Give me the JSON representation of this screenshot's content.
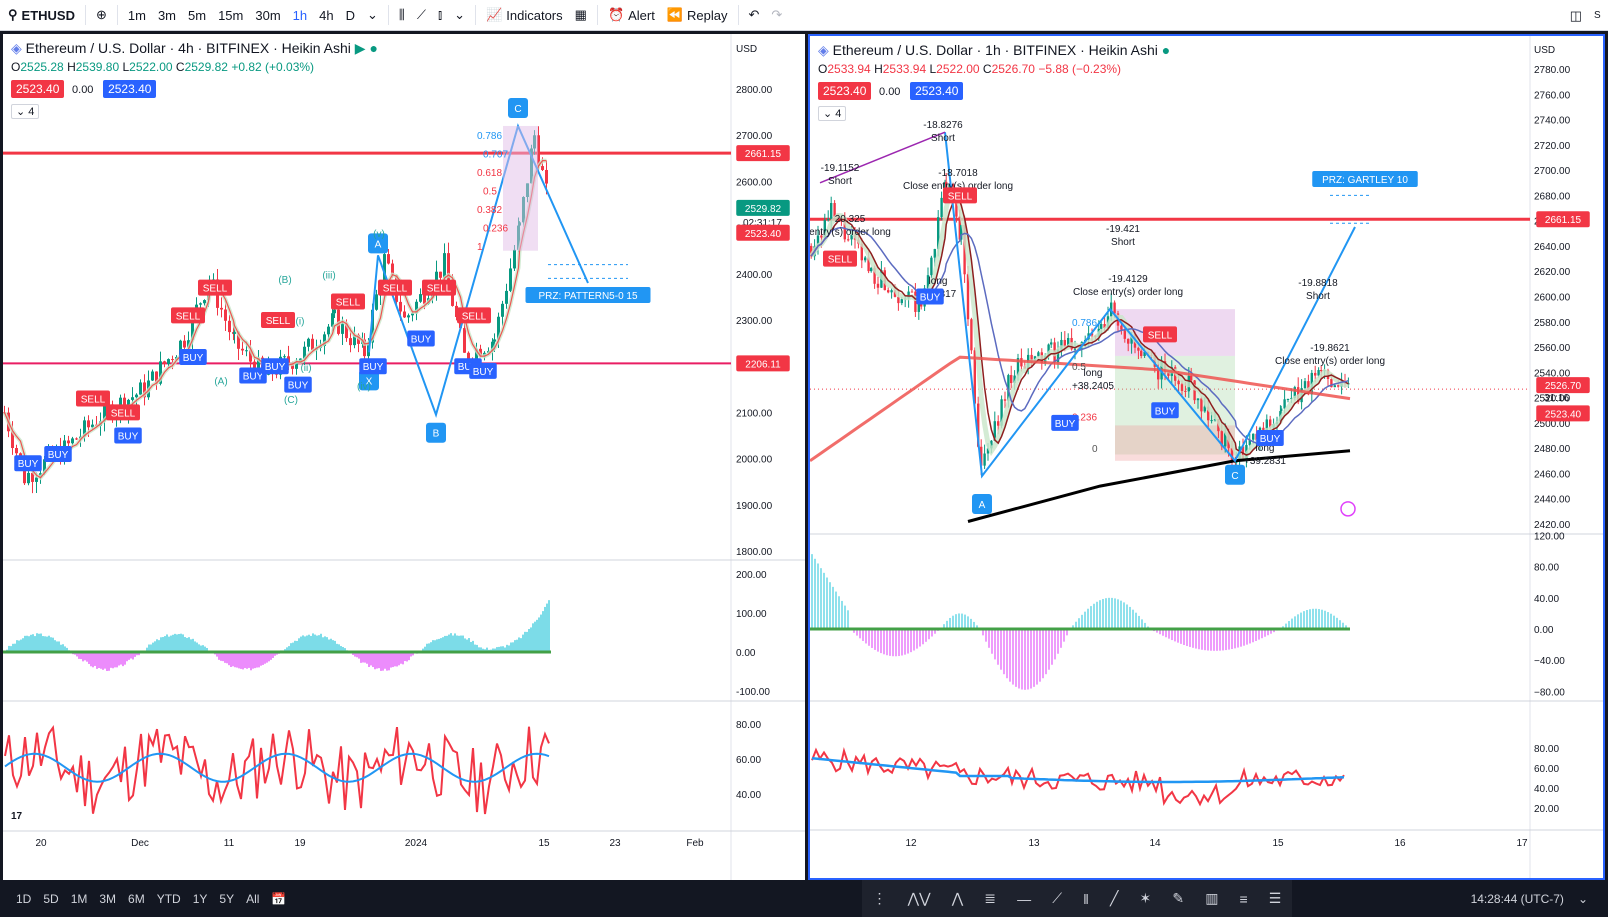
{
  "toolbar": {
    "symbol": "ETHUSD",
    "intervals": [
      "1m",
      "3m",
      "5m",
      "15m",
      "30m",
      "1h",
      "4h",
      "D"
    ],
    "active_interval": "1h",
    "indicators_label": "Indicators",
    "alert_label": "Alert",
    "replay_label": "Replay"
  },
  "left_chart": {
    "title": "Ethereum / U.S. Dollar · 4h · BITFINEX · Heikin Ashi",
    "ohlc": {
      "o": "2525.28",
      "h": "2539.80",
      "l": "2522.00",
      "c": "2529.82",
      "chg": "+0.82 (+0.03%)"
    },
    "bid": "2523.40",
    "spread": "0.00",
    "ask": "2523.40",
    "indicator_count": "4",
    "currency": "USD",
    "price_axis": [
      "2800.00",
      "2700.00",
      "2600.00",
      "2500.00",
      "2400.00",
      "2300.00",
      "2200.00",
      "2100.00",
      "2000.00",
      "1900.00",
      "1800.00"
    ],
    "level_upper": "2661.15",
    "level_lower": "2206.11",
    "last_price": "2529.82",
    "countdown": "02:31:17",
    "last_bid": "2523.40",
    "osc1_axis": [
      "200.00",
      "100.00",
      "0.00",
      "-100.00"
    ],
    "osc2_axis": [
      "80.00",
      "60.00",
      "40.00"
    ],
    "time_axis": [
      "20",
      "Dec",
      "11",
      "19",
      "2024",
      "15",
      "23",
      "Feb"
    ],
    "pattern_label": "PRZ: PATTERN5-0 15",
    "wave_labels": [
      "(A)",
      "(B)",
      "(C)",
      "(iii)",
      "(v)",
      "(iv)",
      "(i)",
      "(ii)"
    ],
    "point_labels": [
      "A",
      "B",
      "C",
      "X"
    ],
    "fib_levels": [
      "0.786",
      "0.707",
      "0.618",
      "0.5",
      "0.382",
      "0.236",
      "1"
    ]
  },
  "right_chart": {
    "title": "Ethereum / U.S. Dollar · 1h · BITFINEX · Heikin Ashi",
    "ohlc": {
      "o": "2533.94",
      "h": "2533.94",
      "l": "2522.00",
      "c": "2526.70",
      "chg": "−5.88 (−0.23%)"
    },
    "bid": "2523.40",
    "spread": "0.00",
    "ask": "2523.40",
    "indicator_count": "4",
    "currency": "USD",
    "price_axis": [
      "2780.00",
      "2760.00",
      "2740.00",
      "2720.00",
      "2700.00",
      "2680.00",
      "2660.00",
      "2640.00",
      "2620.00",
      "2600.00",
      "2580.00",
      "2560.00",
      "2540.00",
      "2520.00",
      "2500.00",
      "2480.00",
      "2460.00",
      "2440.00",
      "2420.00"
    ],
    "level_upper": "2661.15",
    "last_price": "2526.70",
    "countdown": "31:16",
    "last_bid": "2523.40",
    "osc1_axis": [
      "120.00",
      "80.00",
      "40.00",
      "0.00",
      "−40.00",
      "−80.00"
    ],
    "osc2_axis": [
      "80.00",
      "60.00",
      "40.00",
      "20.00"
    ],
    "time_axis": [
      "12",
      "13",
      "14",
      "15",
      "16",
      "17"
    ],
    "pattern_label": "PRZ: GARTLEY 10",
    "annotations": [
      {
        "text": "-19.1152",
        "sub": "Short"
      },
      {
        "text": "-18.8276",
        "sub": "Short"
      },
      {
        "text": "-18.7018",
        "sub": "Close entry(s) order long"
      },
      {
        "text": "-19.421",
        "sub": "Short"
      },
      {
        "text": "-19.4129",
        "sub": "Close entry(s) order long"
      },
      {
        "text": "-19.8818",
        "sub": "Short"
      },
      {
        "text": "-19.8621",
        "sub": "Close entry(s) order long"
      },
      {
        "text": "long",
        "sub": "+37.817"
      },
      {
        "text": "long",
        "sub": "+38.2405"
      },
      {
        "text": "long",
        "sub": "+39.2831"
      },
      {
        "text": "20.325",
        "sub": "entry(s) order long"
      }
    ],
    "point_labels": [
      "A",
      "C"
    ],
    "fib_levels": [
      "0.786",
      "0.5",
      "0.236",
      "0"
    ]
  },
  "bottom": {
    "ranges": [
      "1D",
      "5D",
      "1M",
      "3M",
      "6M",
      "YTD",
      "1Y",
      "5Y",
      "All"
    ],
    "clock": "14:28:44 (UTC-7)"
  },
  "signals": {
    "buy": "BUY",
    "sell": "SELL"
  },
  "colors": {
    "up": "#089981",
    "down": "#f23645",
    "blue": "#2962ff",
    "cyan": "#26c6da",
    "magenta": "#e040fb",
    "level": "#f23645"
  }
}
